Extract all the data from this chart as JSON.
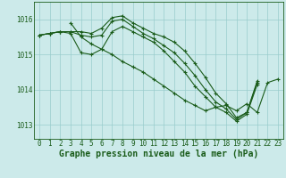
{
  "background_color": "#cceaea",
  "grid_color": "#99cccc",
  "line_color": "#1a5c1a",
  "xlabel": "Graphe pression niveau de la mer (hPa)",
  "xlabel_fontsize": 7,
  "tick_fontsize": 5.5,
  "xlim": [
    -0.5,
    23.5
  ],
  "ylim": [
    1012.6,
    1016.5
  ],
  "yticks": [
    1013,
    1014,
    1015,
    1016
  ],
  "xticks": [
    0,
    1,
    2,
    3,
    4,
    5,
    6,
    7,
    8,
    9,
    10,
    11,
    12,
    13,
    14,
    15,
    16,
    17,
    18,
    19,
    20,
    21,
    22,
    23
  ],
  "series": [
    {
      "x": [
        0,
        1,
        2,
        3,
        4,
        5,
        6,
        7,
        8,
        9,
        10,
        11,
        12,
        13,
        14,
        15,
        16,
        17,
        18,
        19,
        20,
        21
      ],
      "y": [
        1015.55,
        1015.6,
        1015.65,
        1015.65,
        1015.65,
        1015.6,
        1015.75,
        1016.05,
        1016.1,
        1015.9,
        1015.75,
        1015.6,
        1015.5,
        1015.35,
        1015.1,
        1014.75,
        1014.35,
        1013.9,
        1013.6,
        1013.2,
        1013.35,
        1014.2
      ]
    },
    {
      "x": [
        0,
        1,
        2,
        3,
        4,
        5,
        6,
        7,
        8,
        9,
        10,
        11,
        12,
        13,
        14,
        15,
        16,
        17,
        18,
        19,
        20,
        21
      ],
      "y": [
        1015.55,
        1015.6,
        1015.65,
        1015.65,
        1015.55,
        1015.5,
        1015.55,
        1015.95,
        1016.0,
        1015.8,
        1015.6,
        1015.45,
        1015.25,
        1015.05,
        1014.75,
        1014.4,
        1014.0,
        1013.65,
        1013.45,
        1013.15,
        1013.35,
        1014.25
      ]
    },
    {
      "x": [
        0,
        1,
        2,
        3,
        4,
        5,
        6,
        7,
        8,
        9,
        10,
        11,
        12,
        13,
        14,
        15,
        16,
        17,
        18,
        19,
        20,
        21
      ],
      "y": [
        1015.55,
        1015.6,
        1015.65,
        1015.6,
        1015.05,
        1015.0,
        1015.15,
        1015.65,
        1015.8,
        1015.65,
        1015.5,
        1015.35,
        1015.1,
        1014.8,
        1014.5,
        1014.1,
        1013.8,
        1013.5,
        1013.35,
        1013.1,
        1013.3,
        1014.15
      ]
    },
    {
      "x": [
        3,
        4,
        5,
        6,
        7,
        8,
        9,
        10,
        11,
        12,
        13,
        14,
        15,
        16,
        17,
        18,
        19,
        20,
        21,
        22,
        23
      ],
      "y": [
        1015.9,
        1015.5,
        1015.3,
        1015.15,
        1015.0,
        1014.8,
        1014.65,
        1014.5,
        1014.3,
        1014.1,
        1013.9,
        1013.7,
        1013.55,
        1013.4,
        1013.5,
        1013.55,
        1013.4,
        1013.6,
        1013.35,
        1014.2,
        1014.3
      ]
    }
  ]
}
